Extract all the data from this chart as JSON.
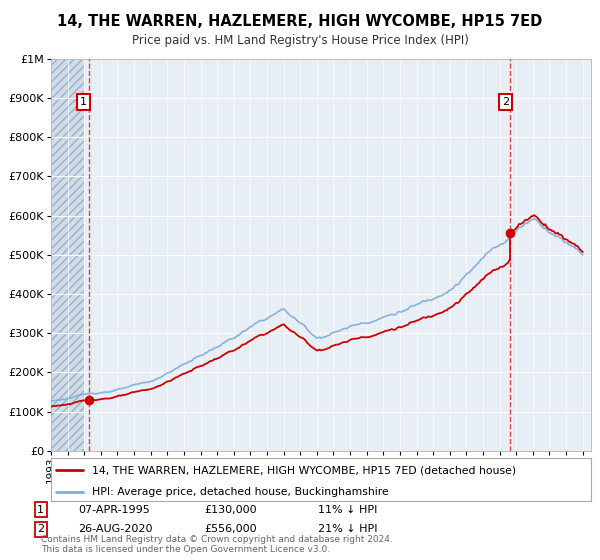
{
  "title": "14, THE WARREN, HAZLEMERE, HIGH WYCOMBE, HP15 7ED",
  "subtitle": "Price paid vs. HM Land Registry's House Price Index (HPI)",
  "ylim": [
    0,
    1000000
  ],
  "yticks": [
    0,
    100000,
    200000,
    300000,
    400000,
    500000,
    600000,
    700000,
    800000,
    900000,
    1000000
  ],
  "ytick_labels": [
    "£0",
    "£100K",
    "£200K",
    "£300K",
    "£400K",
    "£500K",
    "£600K",
    "£700K",
    "£800K",
    "£900K",
    "£1M"
  ],
  "plot_bg_color": "#e8eef5",
  "hatch_bg_color": "#d0dce8",
  "grid_color": "#ffffff",
  "purchase1_date": 1995.27,
  "purchase1_price": 130000,
  "purchase2_date": 2020.65,
  "purchase2_price": 556000,
  "red_color": "#cc0000",
  "blue_color": "#7aaddc",
  "hpi_start_year": 1993.0,
  "hpi_end_year": 2025.0,
  "xlim_min": 1993.0,
  "xlim_max": 2025.5,
  "legend_label_red": "14, THE WARREN, HAZLEMERE, HIGH WYCOMBE, HP15 7ED (detached house)",
  "legend_label_blue": "HPI: Average price, detached house, Buckinghamshire",
  "table_rows": [
    {
      "num": "1",
      "date": "07-APR-1995",
      "price": "£130,000",
      "hpi": "11% ↓ HPI"
    },
    {
      "num": "2",
      "date": "26-AUG-2020",
      "price": "£556,000",
      "hpi": "21% ↓ HPI"
    }
  ],
  "footer": "Contains HM Land Registry data © Crown copyright and database right 2024.\nThis data is licensed under the Open Government Licence v3.0."
}
